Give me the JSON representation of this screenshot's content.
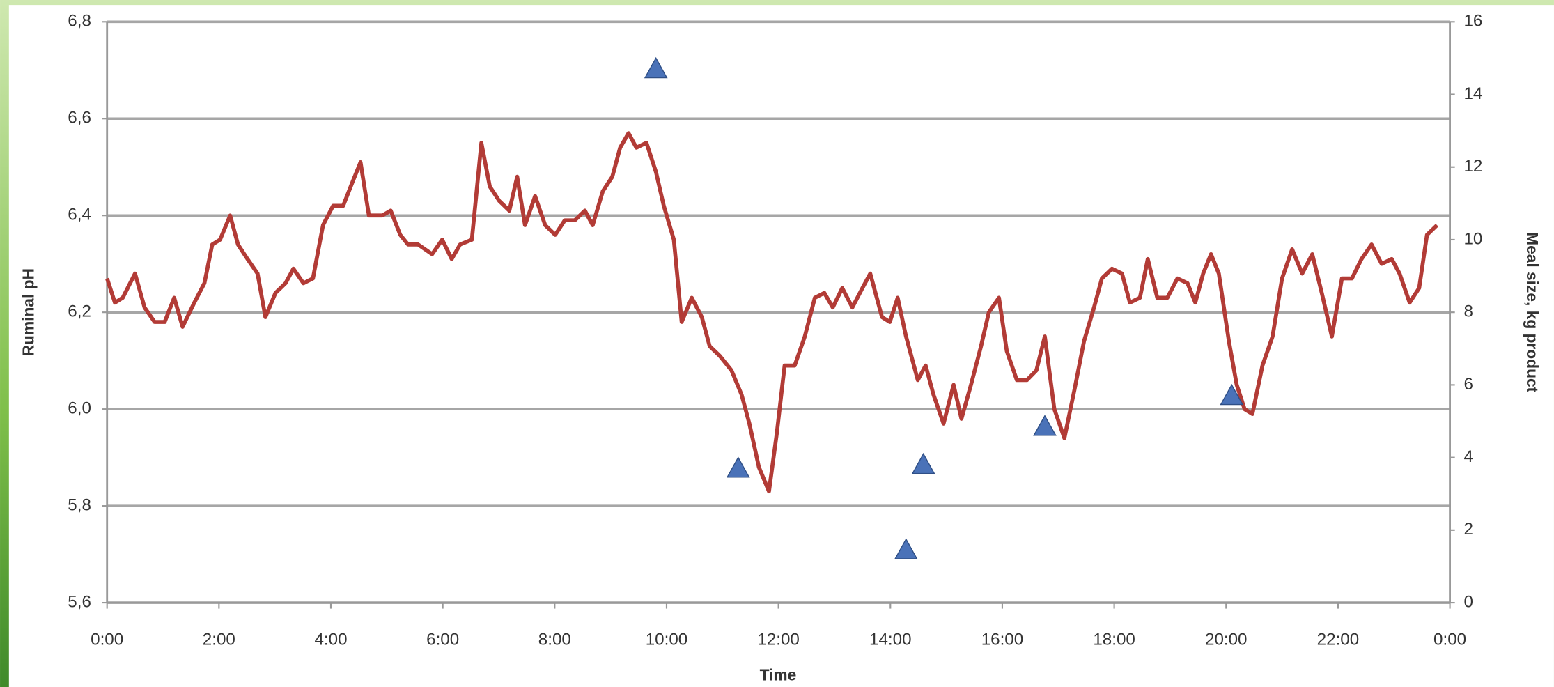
{
  "chart_data": {
    "type": "line",
    "xlabel": "Time",
    "ylabel": "Ruminal pH",
    "y2label": "Meal size, kg product",
    "xlim": [
      0,
      24
    ],
    "xticks": [
      {
        "value": 0,
        "label": "0:00"
      },
      {
        "value": 2,
        "label": "2:00"
      },
      {
        "value": 4,
        "label": "4:00"
      },
      {
        "value": 6,
        "label": "6:00"
      },
      {
        "value": 8,
        "label": "8:00"
      },
      {
        "value": 10,
        "label": "10:00"
      },
      {
        "value": 12,
        "label": "12:00"
      },
      {
        "value": 14,
        "label": "14:00"
      },
      {
        "value": 16,
        "label": "16:00"
      },
      {
        "value": 18,
        "label": "18:00"
      },
      {
        "value": 20,
        "label": "20:00"
      },
      {
        "value": 22,
        "label": "22:00"
      },
      {
        "value": 24,
        "label": "0:00"
      }
    ],
    "ylim": [
      5.6,
      6.8
    ],
    "yticks": [
      {
        "value": 5.6,
        "label": "5,6"
      },
      {
        "value": 5.8,
        "label": "5,8"
      },
      {
        "value": 6.0,
        "label": "6,0"
      },
      {
        "value": 6.2,
        "label": "6,2"
      },
      {
        "value": 6.4,
        "label": "6,4"
      },
      {
        "value": 6.6,
        "label": "6,6"
      },
      {
        "value": 6.8,
        "label": "6,8"
      }
    ],
    "y2lim": [
      0,
      16
    ],
    "y2ticks": [
      0,
      2,
      4,
      6,
      8,
      10,
      12,
      14,
      16
    ],
    "grid": true,
    "series": [
      {
        "type": "line",
        "color": "#b23b36",
        "x": [
          0,
          0.14,
          0.28,
          0.5,
          0.67,
          0.85,
          1.03,
          1.2,
          1.35,
          1.56,
          1.74,
          1.88,
          2.02,
          2.2,
          2.34,
          2.51,
          2.69,
          2.83,
          3.01,
          3.19,
          3.33,
          3.51,
          3.68,
          3.86,
          4.04,
          4.22,
          4.39,
          4.53,
          4.68,
          4.92,
          5.07,
          5.24,
          5.38,
          5.56,
          5.81,
          5.99,
          6.16,
          6.31,
          6.52,
          6.69,
          6.84,
          7.01,
          7.19,
          7.33,
          7.47,
          7.65,
          7.83,
          8.01,
          8.18,
          8.36,
          8.54,
          8.68,
          8.86,
          9.03,
          9.17,
          9.32,
          9.46,
          9.64,
          9.81,
          9.95,
          10.13,
          10.27,
          10.45,
          10.63,
          10.77,
          10.95,
          11.16,
          11.34,
          11.48,
          11.65,
          11.83,
          11.97,
          12.11,
          12.29,
          12.47,
          12.65,
          12.82,
          12.97,
          13.14,
          13.32,
          13.5,
          13.64,
          13.85,
          13.99,
          14.13,
          14.28,
          14.49,
          14.63,
          14.77,
          14.95,
          15.13,
          15.27,
          15.44,
          15.62,
          15.76,
          15.94,
          16.08,
          16.26,
          16.44,
          16.61,
          16.76,
          16.93,
          17.11,
          17.29,
          17.46,
          17.64,
          17.78,
          17.96,
          18.14,
          18.28,
          18.46,
          18.6,
          18.77,
          18.95,
          19.13,
          19.31,
          19.45,
          19.59,
          19.73,
          19.87,
          20.05,
          20.19,
          20.33,
          20.47,
          20.65,
          20.83,
          21,
          21.18,
          21.36,
          21.54,
          21.71,
          21.89,
          22.07,
          22.25,
          22.42,
          22.6,
          22.78,
          22.96,
          23.1,
          23.28,
          23.45,
          23.59,
          23.77
        ],
        "values": [
          6.27,
          6.22,
          6.23,
          6.28,
          6.21,
          6.18,
          6.18,
          6.23,
          6.17,
          6.22,
          6.26,
          6.34,
          6.35,
          6.4,
          6.34,
          6.31,
          6.28,
          6.19,
          6.24,
          6.26,
          6.29,
          6.26,
          6.27,
          6.38,
          6.42,
          6.42,
          6.47,
          6.51,
          6.4,
          6.4,
          6.41,
          6.36,
          6.34,
          6.34,
          6.32,
          6.35,
          6.31,
          6.34,
          6.35,
          6.55,
          6.46,
          6.43,
          6.41,
          6.48,
          6.38,
          6.44,
          6.38,
          6.36,
          6.39,
          6.39,
          6.41,
          6.38,
          6.45,
          6.48,
          6.54,
          6.57,
          6.54,
          6.55,
          6.49,
          6.42,
          6.35,
          6.18,
          6.23,
          6.19,
          6.13,
          6.11,
          6.08,
          6.03,
          5.97,
          5.88,
          5.83,
          5.95,
          6.09,
          6.09,
          6.15,
          6.23,
          6.24,
          6.21,
          6.25,
          6.21,
          6.25,
          6.28,
          6.19,
          6.18,
          6.23,
          6.15,
          6.06,
          6.09,
          6.03,
          5.97,
          6.05,
          5.98,
          6.05,
          6.13,
          6.2,
          6.23,
          6.12,
          6.06,
          6.06,
          6.08,
          6.15,
          6.0,
          5.94,
          6.04,
          6.14,
          6.21,
          6.27,
          6.29,
          6.28,
          6.22,
          6.23,
          6.31,
          6.23,
          6.23,
          6.27,
          6.26,
          6.22,
          6.28,
          6.32,
          6.28,
          6.14,
          6.05,
          6.0,
          5.99,
          6.09,
          6.15,
          6.27,
          6.33,
          6.28,
          6.32,
          6.24,
          6.15,
          6.27,
          6.27,
          6.31,
          6.34,
          6.3,
          6.31,
          6.28,
          6.22,
          6.25,
          6.36,
          6.38
        ]
      },
      {
        "type": "scatter",
        "axis": "y2",
        "marker": "triangle",
        "color": "#4a72b8",
        "x": [
          9.81,
          11.28,
          14.28,
          14.59,
          16.76,
          20.1
        ],
        "values": [
          14.7,
          3.7,
          1.45,
          3.8,
          4.85,
          5.7
        ]
      }
    ]
  }
}
